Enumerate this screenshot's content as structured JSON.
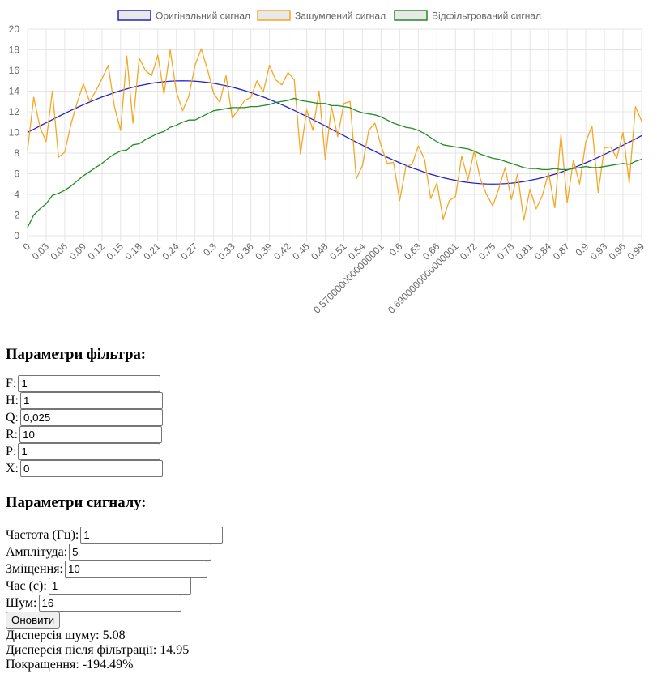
{
  "chart_data": {
    "type": "line",
    "legend": [
      "Оригінальний сигнал",
      "Зашумлений сигнал",
      "Відфільтрований сигнал"
    ],
    "series_colors": [
      "#2222cc",
      "#f5a623",
      "#228b22"
    ],
    "x": [
      0,
      0.01,
      0.02,
      0.03,
      0.04,
      0.05,
      0.06,
      0.07,
      0.08,
      0.09,
      0.1,
      0.11,
      0.12,
      0.13,
      0.14,
      0.15,
      0.16,
      0.17,
      0.18,
      0.19,
      0.2,
      0.21,
      0.22,
      0.23,
      0.24,
      0.25,
      0.26,
      0.27,
      0.28,
      0.29,
      0.3,
      0.31,
      0.32,
      0.33,
      0.34,
      0.35,
      0.36,
      0.37,
      0.38,
      0.39,
      0.4,
      0.41,
      0.42,
      0.43,
      0.44,
      0.45,
      0.46,
      0.47,
      0.48,
      0.49,
      0.5,
      0.51,
      0.52,
      0.53,
      0.54,
      0.55,
      0.56,
      0.57,
      0.58,
      0.59,
      0.6,
      0.61,
      0.62,
      0.63,
      0.64,
      0.65,
      0.66,
      0.67,
      0.68,
      0.69,
      0.7,
      0.71,
      0.72,
      0.73,
      0.74,
      0.75,
      0.76,
      0.77,
      0.78,
      0.79,
      0.8,
      0.81,
      0.82,
      0.83,
      0.84,
      0.85,
      0.86,
      0.87,
      0.88,
      0.89,
      0.9,
      0.91,
      0.92,
      0.93,
      0.94,
      0.95,
      0.96,
      0.97,
      0.98,
      0.99
    ],
    "x_tick_labels": [
      "0",
      "0.03",
      "0.06",
      "0.09",
      "0.12",
      "0.15",
      "0.18",
      "0.21",
      "0.24",
      "0.27",
      "0.3",
      "0.33",
      "0.36",
      "0.39",
      "0.42",
      "0.45",
      "0.48",
      "0.51",
      "0.54",
      "0.5700000000000001",
      "0.6",
      "0.63",
      "0.66",
      "0.6900000000000001",
      "0.72",
      "0.75",
      "0.78",
      "0.81",
      "0.84",
      "0.87",
      "0.9",
      "0.93",
      "0.96",
      "0.99"
    ],
    "ylim": [
      0,
      20
    ],
    "y_ticks": [
      0,
      2,
      4,
      6,
      8,
      10,
      12,
      14,
      16,
      18,
      20
    ],
    "grid": true,
    "legend_position": "top",
    "series": [
      {
        "name": "Оригінальний сигнал",
        "values": [
          10,
          10.31,
          10.63,
          10.94,
          11.24,
          11.55,
          11.84,
          12.13,
          12.41,
          12.68,
          12.94,
          13.19,
          13.43,
          13.64,
          13.85,
          14.05,
          14.22,
          14.38,
          14.52,
          14.64,
          14.76,
          14.84,
          14.91,
          14.96,
          14.99,
          15,
          14.99,
          14.96,
          14.91,
          14.84,
          14.76,
          14.64,
          14.52,
          14.38,
          14.22,
          14.05,
          13.85,
          13.64,
          13.43,
          13.19,
          12.94,
          12.68,
          12.41,
          12.13,
          11.84,
          11.55,
          11.24,
          10.94,
          10.63,
          10.31,
          10,
          9.69,
          9.37,
          9.06,
          8.76,
          8.45,
          8.16,
          7.87,
          7.59,
          7.32,
          7.06,
          6.81,
          6.57,
          6.36,
          6.15,
          5.95,
          5.78,
          5.62,
          5.48,
          5.36,
          5.24,
          5.16,
          5.09,
          5.04,
          5.01,
          5,
          5.01,
          5.04,
          5.09,
          5.16,
          5.24,
          5.36,
          5.48,
          5.62,
          5.78,
          5.95,
          6.15,
          6.36,
          6.57,
          6.81,
          7.06,
          7.32,
          7.59,
          7.87,
          8.16,
          8.45,
          8.76,
          9.06,
          9.37,
          9.69
        ]
      },
      {
        "name": "Зашумлений сигнал",
        "values": [
          8.3,
          13.4,
          10.5,
          9.1,
          14,
          7.6,
          8.1,
          10.8,
          12.9,
          14.7,
          13,
          14,
          15.2,
          16.5,
          12.5,
          10.2,
          17.4,
          10.9,
          17.2,
          16,
          15.5,
          17.5,
          13.7,
          18,
          13.9,
          12.1,
          13.5,
          16.5,
          18.1,
          16.1,
          13.8,
          12.9,
          15.5,
          11.4,
          12.2,
          13.1,
          13.4,
          15,
          13.9,
          16.5,
          15.1,
          14.6,
          15.8,
          15.1,
          7.9,
          12.2,
          10.2,
          14,
          7.4,
          12.5,
          9.6,
          12.8,
          13,
          5.5,
          6.8,
          10.2,
          10.9,
          8.7,
          7,
          7.1,
          3.4,
          6.7,
          6.9,
          8.7,
          7.4,
          3.6,
          5.1,
          1.6,
          3.4,
          3.8,
          7.7,
          5.4,
          8.2,
          5.5,
          4,
          2.9,
          4.6,
          6.6,
          3.5,
          6,
          1.5,
          4.5,
          2.6,
          3.9,
          6.1,
          2.7,
          9.8,
          3.2,
          7.3,
          5,
          9.1,
          10.6,
          4.2,
          8.5,
          8.6,
          7.5,
          10,
          5.1,
          12.5,
          11.1
        ]
      },
      {
        "name": "Відфільтрований сигнал",
        "values": [
          0.8,
          2,
          2.6,
          3.1,
          3.9,
          4.1,
          4.4,
          4.8,
          5.3,
          5.8,
          6.2,
          6.6,
          7,
          7.5,
          7.9,
          8.2,
          8.3,
          8.8,
          8.9,
          9.3,
          9.6,
          9.9,
          10.1,
          10.5,
          10.7,
          11,
          11.2,
          11.2,
          11.5,
          11.8,
          12.1,
          12.2,
          12.3,
          12.4,
          12.4,
          12.4,
          12.5,
          12.5,
          12.6,
          12.7,
          12.9,
          13,
          13.1,
          13.3,
          13.1,
          13,
          12.9,
          12.8,
          12.8,
          12.6,
          12.6,
          12.5,
          12.4,
          12.1,
          11.9,
          11.8,
          11.7,
          11.5,
          11.2,
          10.9,
          10.7,
          10.5,
          10.4,
          10.2,
          9.9,
          9.5,
          9.1,
          8.8,
          8.7,
          8.6,
          8.5,
          8.4,
          8.2,
          7.9,
          7.7,
          7.5,
          7.4,
          7.2,
          7,
          6.8,
          6.6,
          6.5,
          6.5,
          6.4,
          6.4,
          6.5,
          6.4,
          6.4,
          6.5,
          6.6,
          6.7,
          6.6,
          6.6,
          6.7,
          6.8,
          6.9,
          7,
          6.9,
          7.2,
          7.4
        ]
      }
    ]
  },
  "filter": {
    "title": "Параметри фільтра:",
    "fields": [
      {
        "label": "F:",
        "value": "1"
      },
      {
        "label": "H:",
        "value": "1"
      },
      {
        "label": "Q:",
        "value": "0,025"
      },
      {
        "label": "R:",
        "value": "10"
      },
      {
        "label": "P:",
        "value": "1"
      },
      {
        "label": "X:",
        "value": "0"
      }
    ]
  },
  "signal": {
    "title": "Параметри сигналу:",
    "fields": [
      {
        "label": "Частота (Гц):",
        "value": "1"
      },
      {
        "label": "Амплітуда:",
        "value": "5"
      },
      {
        "label": "Зміщення:",
        "value": "10"
      },
      {
        "label": "Час (с):",
        "value": "1"
      },
      {
        "label": "Шум:",
        "value": "16"
      }
    ]
  },
  "update_button": "Оновити",
  "stats": {
    "noise_variance": "Дисперсія шуму: 5.08",
    "filtered_variance": "Дисперсія після фільтрації: 14.95",
    "improvement": "Покращення: -194.49%"
  }
}
